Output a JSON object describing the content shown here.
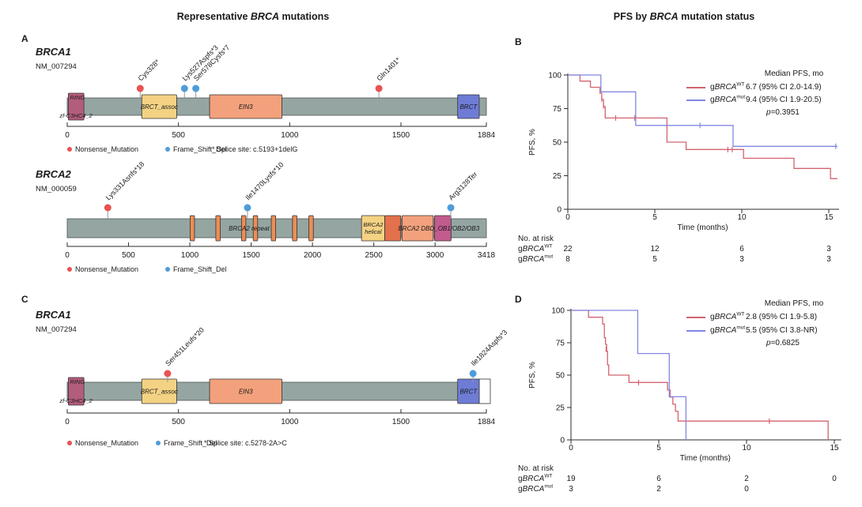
{
  "titles": {
    "left": {
      "pre": "Representative ",
      "gene": "BRCA",
      "post": " mutations"
    },
    "right": {
      "pre": "PFS by ",
      "gene": "BRCA",
      "post": " mutation status"
    }
  },
  "panel_letters": {
    "a": "A",
    "b": "B",
    "c": "C",
    "d": "D"
  },
  "colors": {
    "bar": "#95a6a2",
    "bar_stroke": "#4b5454",
    "ring": "#b35d7d",
    "yellow": "#f4d284",
    "salmon": "#f2a17c",
    "brct_blue": "#6e7cd6",
    "stripe": "#ec8d55",
    "dark_orange": "#e3714b",
    "magenta": "#c25b8e",
    "nonsense": "#ea5252",
    "frameshift": "#4e9cd9",
    "stem": "#999999",
    "km_wt": "#d26370",
    "km_mut": "#8287e2",
    "axis": "#2b2b2b"
  },
  "chart_data": [
    {
      "type": "lollipop",
      "id": "A1",
      "panel": "A",
      "gene": "BRCA1",
      "transcript": "NM_007294",
      "length": 1884,
      "axis_ticks": [
        0,
        500,
        1000,
        1500,
        1884
      ],
      "domains": [
        {
          "label_top": "RING",
          "label_bottom": "zf-C3HC4_2",
          "start": 5,
          "end": 75,
          "color": "ring",
          "tall": true
        },
        {
          "label": "BRCT_assoc",
          "start": 335,
          "end": 492,
          "color": "yellow"
        },
        {
          "label": "EIN3",
          "start": 640,
          "end": 965,
          "color": "salmon"
        },
        {
          "label": "BRCT",
          "start": 1755,
          "end": 1852,
          "color": "brct_blue"
        }
      ],
      "bar_labels": [],
      "mutations": [
        {
          "label": "Cys328*",
          "pos": 328,
          "type": "nonsense"
        },
        {
          "label": "Lys527Aspfs*3",
          "pos": 527,
          "type": "frameshift"
        },
        {
          "label": "Ser578Cysfs*7",
          "pos": 578,
          "type": "frameshift"
        },
        {
          "label": "Gln1401*",
          "pos": 1401,
          "type": "nonsense"
        }
      ],
      "legend": [
        {
          "type": "nonsense",
          "label": "Nonsense_Mutation",
          "x": 88
        },
        {
          "type": "frameshift",
          "label": "Frame_Shift_Del",
          "x": 212
        }
      ],
      "note": "* Splice site: c.5193+1delG",
      "note_x": 268,
      "truncated_end": false
    },
    {
      "type": "lollipop",
      "id": "A2",
      "panel": "A",
      "gene": "BRCA2",
      "transcript": "NM_000059",
      "length": 3418,
      "axis_ticks": [
        0,
        500,
        1000,
        1500,
        2000,
        2500,
        3000,
        3418
      ],
      "domains": [
        {
          "start": 1002,
          "end": 1038,
          "color": "stripe"
        },
        {
          "start": 1212,
          "end": 1248,
          "color": "stripe"
        },
        {
          "start": 1421,
          "end": 1457,
          "color": "stripe"
        },
        {
          "start": 1517,
          "end": 1553,
          "color": "stripe"
        },
        {
          "start": 1664,
          "end": 1700,
          "color": "stripe"
        },
        {
          "start": 1837,
          "end": 1873,
          "color": "stripe"
        },
        {
          "start": 1971,
          "end": 2007,
          "color": "stripe"
        },
        {
          "label": "BRCA2",
          "label2": "helical",
          "start": 2400,
          "end": 2590,
          "color": "yellow"
        },
        {
          "start": 2590,
          "end": 2720,
          "color": "dark_orange"
        },
        {
          "start": 2730,
          "end": 2985,
          "color": "salmon"
        },
        {
          "start": 2995,
          "end": 3130,
          "color": "magenta"
        }
      ],
      "bar_labels": [
        {
          "text": "BRCA2 repeat",
          "pos": 1483
        },
        {
          "text": "BRCA2 DBD_OB1/OB2/OB3",
          "pos": 3030
        }
      ],
      "mutations": [
        {
          "label": "Lys331Asnfs*18",
          "pos": 331,
          "type": "nonsense"
        },
        {
          "label": "Ile1470Lysfs*10",
          "pos": 1470,
          "type": "frameshift"
        },
        {
          "label": "Arg3128Ter",
          "pos": 3128,
          "type": "frameshift"
        }
      ],
      "legend": [
        {
          "type": "nonsense",
          "label": "Nonsense_Mutation",
          "x": 88
        },
        {
          "type": "frameshift",
          "label": "Frame_Shift_Del",
          "x": 212
        }
      ],
      "note": "",
      "note_x": 0,
      "truncated_end": false
    },
    {
      "type": "lollipop",
      "id": "C1",
      "panel": "C",
      "gene": "BRCA1",
      "transcript": "NM_007294",
      "length": 1884,
      "axis_ticks": [
        0,
        500,
        1000,
        1500,
        1884
      ],
      "domains": [
        {
          "label_top": "RING",
          "label_bottom": "zf-C3HC4_2",
          "start": 5,
          "end": 75,
          "color": "ring",
          "tall": true
        },
        {
          "label": "BRCT_assoc",
          "start": 335,
          "end": 492,
          "color": "yellow"
        },
        {
          "label": "EIN3",
          "start": 640,
          "end": 965,
          "color": "salmon"
        },
        {
          "label": "BRCT",
          "start": 1755,
          "end": 1852,
          "color": "brct_blue"
        }
      ],
      "bar_labels": [],
      "mutations": [
        {
          "label": "Ser451Leufs*20",
          "pos": 451,
          "type": "nonsense"
        },
        {
          "label": "Ile1824Aspfs*3",
          "pos": 1824,
          "type": "frameshift"
        }
      ],
      "legend": [
        {
          "type": "nonsense",
          "label": "Nonsense_Mutation",
          "x": 88
        },
        {
          "type": "frameshift",
          "label": "Frame_Shift_Del",
          "x": 200
        }
      ],
      "note": "* Splice site: c.5278-2A>C",
      "note_x": 258,
      "truncated_end": true
    },
    {
      "type": "km",
      "id": "B",
      "panel": "B",
      "xlabel": "Time (months)",
      "ylabel": "PFS, %",
      "xticks": [
        0,
        5,
        10,
        15
      ],
      "yticks": [
        0,
        25,
        50,
        75,
        100
      ],
      "xlim": [
        0,
        15.5
      ],
      "ylim": [
        0,
        100
      ],
      "legend_header": "Median PFS, mo",
      "p_value": "p=0.3951",
      "series": [
        {
          "key": "wt",
          "label_pre": "g",
          "label_gene": "BRCA",
          "label_sup": "WT",
          "color": "km_wt",
          "median": "6.7 (95% CI 2.0-14.9)",
          "points": [
            [
              0,
              100
            ],
            [
              0.7,
              95.5
            ],
            [
              1.3,
              90.9
            ],
            [
              1.85,
              86.4
            ],
            [
              1.95,
              81.8
            ],
            [
              2.05,
              76.5
            ],
            [
              2.15,
              68
            ],
            [
              5.7,
              50
            ],
            [
              6.8,
              44.5
            ],
            [
              10.1,
              38
            ],
            [
              13.0,
              30.4
            ],
            [
              15.1,
              22.8
            ]
          ],
          "end": 15.5,
          "censors": [
            [
              1.95,
              82
            ],
            [
              2.05,
              77
            ],
            [
              2.75,
              68
            ],
            [
              3.85,
              68
            ],
            [
              9.2,
              44.5
            ],
            [
              9.45,
              44.5
            ]
          ]
        },
        {
          "key": "mut",
          "label_pre": "g",
          "label_gene": "BRCA",
          "label_sup": "mut",
          "color": "km_mut",
          "median": "9.4 (95% CI 1.9-20.5)",
          "points": [
            [
              0,
              100
            ],
            [
              1.9,
              87.5
            ],
            [
              3.9,
              62.5
            ],
            [
              9.5,
              46.9
            ]
          ],
          "end": 15.5,
          "censors": [
            [
              7.6,
              62.5
            ],
            [
              15.4,
              46.9
            ]
          ]
        }
      ],
      "risk_table": {
        "title": "No. at risk",
        "rows": [
          {
            "label_pre": "g",
            "gene": "BRCA",
            "sup": "WT",
            "counts": [
              "22",
              "12",
              "6",
              "3"
            ]
          },
          {
            "label_pre": "g",
            "gene": "BRCA",
            "sup": "mut",
            "counts": [
              "8",
              "5",
              "3",
              "3"
            ]
          }
        ]
      }
    },
    {
      "type": "km",
      "id": "D",
      "panel": "D",
      "xlabel": "Time (months)",
      "ylabel": "PFS, %",
      "xticks": [
        0,
        5,
        10,
        15
      ],
      "yticks": [
        0,
        25,
        50,
        75,
        100
      ],
      "xlim": [
        0,
        15.3
      ],
      "ylim": [
        0,
        100
      ],
      "legend_header": "Median PFS, mo",
      "p_value": "p=0.6825",
      "series": [
        {
          "key": "wt",
          "label_pre": "g",
          "label_gene": "BRCA",
          "label_sup": "WT",
          "color": "km_wt",
          "median": "2.8 (95% CI 1.9-5.8)",
          "points": [
            [
              0,
              100
            ],
            [
              1.0,
              94.7
            ],
            [
              1.8,
              89.5
            ],
            [
              1.9,
              78.9
            ],
            [
              1.97,
              73.7
            ],
            [
              2.03,
              68.4
            ],
            [
              2.08,
              57.9
            ],
            [
              2.15,
              50
            ],
            [
              3.3,
              44.3
            ],
            [
              5.5,
              38.5
            ],
            [
              5.65,
              33
            ],
            [
              5.8,
              27.5
            ],
            [
              5.95,
              22
            ],
            [
              6.1,
              14.5
            ],
            [
              14.65,
              0
            ]
          ],
          "end": 14.65,
          "censors": [
            [
              2.0,
              70
            ],
            [
              3.85,
              44.3
            ],
            [
              11.3,
              14.5
            ]
          ]
        },
        {
          "key": "mut",
          "label_pre": "g",
          "label_gene": "BRCA",
          "label_sup": "mut",
          "color": "km_mut",
          "median": "5.5 (95% CI 3.8-NR)",
          "points": [
            [
              0,
              100
            ],
            [
              3.8,
              66.7
            ],
            [
              5.6,
              33.3
            ],
            [
              6.55,
              0
            ]
          ],
          "end": 6.55,
          "censors": []
        }
      ],
      "risk_table": {
        "title": "No. at risk",
        "rows": [
          {
            "label_pre": "g",
            "gene": "BRCA",
            "sup": "WT",
            "counts": [
              "19",
              "6",
              "2",
              "0"
            ]
          },
          {
            "label_pre": "g",
            "gene": "BRCA",
            "sup": "mut",
            "counts": [
              "3",
              "2",
              "0"
            ]
          }
        ]
      }
    }
  ]
}
